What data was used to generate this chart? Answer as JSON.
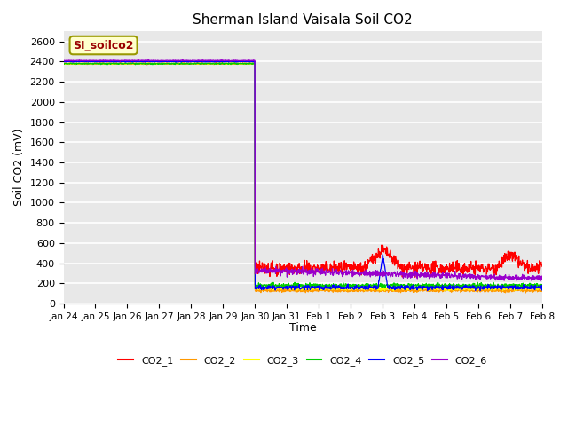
{
  "title": "Sherman Island Vaisala Soil CO2",
  "ylabel": "Soil CO2 (mV)",
  "xlabel": "Time",
  "annotation_text": "SI_soilco2",
  "annotation_bg": "#ffffcc",
  "annotation_border": "#999900",
  "annotation_text_color": "#990000",
  "ylim": [
    0,
    2700
  ],
  "yticks": [
    0,
    200,
    400,
    600,
    800,
    1000,
    1200,
    1400,
    1600,
    1800,
    2000,
    2200,
    2400,
    2600
  ],
  "xtick_labels": [
    "Jan 24",
    "Jan 25",
    "Jan 26",
    "Jan 27",
    "Jan 28",
    "Jan 29",
    "Jan 30",
    "Jan 31",
    "Feb 1",
    "Feb 2",
    "Feb 3",
    "Feb 4",
    "Feb 5",
    "Feb 6",
    "Feb 7",
    "Feb 8"
  ],
  "plot_bg_color": "#e8e8e8",
  "fig_bg_color": "#ffffff",
  "grid_color": "#ffffff",
  "legend_entries": [
    "CO2_1",
    "CO2_2",
    "CO2_3",
    "CO2_4",
    "CO2_5",
    "CO2_6"
  ],
  "legend_colors": [
    "#ff0000",
    "#ff9900",
    "#ffff00",
    "#00cc00",
    "#0000ff",
    "#9900cc"
  ],
  "transition_day": 6,
  "total_days": 15
}
